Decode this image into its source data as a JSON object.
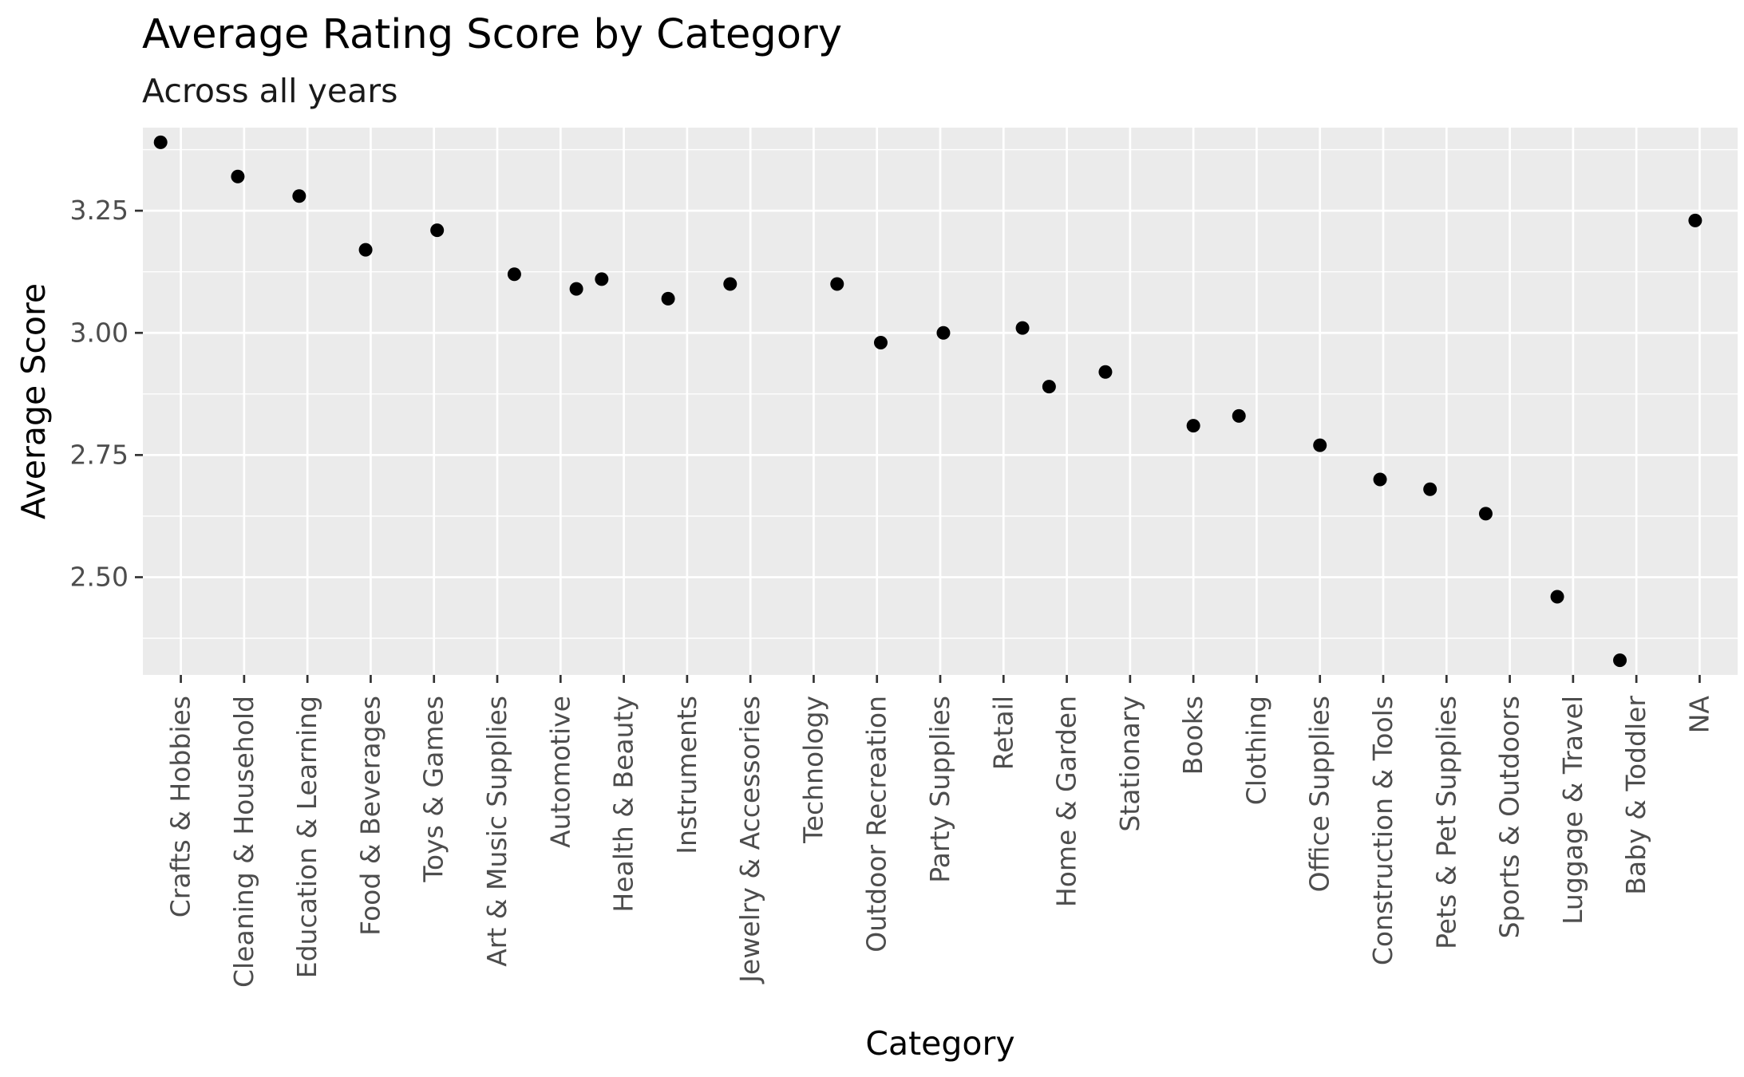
{
  "chart_data": {
    "type": "scatter",
    "title": "Average Rating Score by Category",
    "subtitle": "Across all years",
    "xlabel": "Category",
    "ylabel": "Average Score",
    "ylim": [
      2.3,
      3.42
    ],
    "y_ticks": [
      2.5,
      2.75,
      3.0,
      3.25
    ],
    "y_tick_labels": [
      "2.50",
      "2.75",
      "3.00",
      "3.25"
    ],
    "grid": true,
    "legend": "none",
    "categories": [
      "Crafts & Hobbies",
      "Cleaning & Household",
      "Education & Learning",
      "Food & Beverages",
      "Toys & Games",
      "Art & Music Supplies",
      "Automotive",
      "Health & Beauty",
      "Instruments",
      "Jewelry & Accessories",
      "Technology",
      "Outdoor Recreation",
      "Party Supplies",
      "Retail",
      "Home & Garden",
      "Stationary",
      "Books",
      "Clothing",
      "Office Supplies",
      "Construction & Tools",
      "Pets & Pet Supplies",
      "Sports & Outdoors",
      "Luggage & Travel",
      "Baby & Toddler",
      "NA"
    ],
    "points": [
      {
        "category": "Crafts & Hobbies",
        "jitter": -0.32,
        "y": 3.39
      },
      {
        "category": "Cleaning & Household",
        "jitter": -0.1,
        "y": 3.32
      },
      {
        "category": "Education & Learning",
        "jitter": -0.13,
        "y": 3.28
      },
      {
        "category": "Food & Beverages",
        "jitter": -0.08,
        "y": 3.17
      },
      {
        "category": "Toys & Games",
        "jitter": 0.05,
        "y": 3.21
      },
      {
        "category": "Art & Music Supplies",
        "jitter": 0.27,
        "y": 3.12
      },
      {
        "category": "Automotive",
        "jitter": 0.25,
        "y": 3.09
      },
      {
        "category": "Health & Beauty",
        "jitter": -0.35,
        "y": 3.11
      },
      {
        "category": "Instruments",
        "jitter": -0.3,
        "y": 3.07
      },
      {
        "category": "Jewelry & Accessories",
        "jitter": -0.32,
        "y": 3.1
      },
      {
        "category": "Technology",
        "jitter": 0.37,
        "y": 3.1
      },
      {
        "category": "Outdoor Recreation",
        "jitter": 0.06,
        "y": 2.98
      },
      {
        "category": "Party Supplies",
        "jitter": 0.05,
        "y": 3.0
      },
      {
        "category": "Retail",
        "jitter": 0.3,
        "y": 3.01
      },
      {
        "category": "Home & Garden",
        "jitter": -0.28,
        "y": 2.89
      },
      {
        "category": "Stationary",
        "jitter": -0.39,
        "y": 2.92
      },
      {
        "category": "Books",
        "jitter": 0.0,
        "y": 2.81
      },
      {
        "category": "Clothing",
        "jitter": -0.28,
        "y": 2.83
      },
      {
        "category": "Office Supplies",
        "jitter": 0.0,
        "y": 2.77
      },
      {
        "category": "Construction & Tools",
        "jitter": -0.05,
        "y": 2.7
      },
      {
        "category": "Pets & Pet Supplies",
        "jitter": -0.26,
        "y": 2.68
      },
      {
        "category": "Sports & Outdoors",
        "jitter": -0.38,
        "y": 2.63
      },
      {
        "category": "Luggage & Travel",
        "jitter": -0.25,
        "y": 2.46
      },
      {
        "category": "Baby & Toddler",
        "jitter": -0.26,
        "y": 2.33
      },
      {
        "category": "NA",
        "jitter": -0.07,
        "y": 3.23
      }
    ]
  }
}
